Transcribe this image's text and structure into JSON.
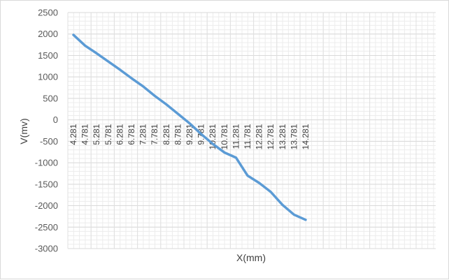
{
  "chart_data": {
    "type": "line",
    "title": "",
    "xlabel": "X(mm)",
    "ylabel": "V(mv)",
    "ylim": [
      -3000,
      2500
    ],
    "y_ticks": [
      2500,
      2000,
      1500,
      1000,
      500,
      0,
      -500,
      -1000,
      -1500,
      -2000,
      -2500,
      -3000
    ],
    "categories": [
      "4.281",
      "4.781",
      "5.281",
      "5.781",
      "6.281",
      "6.781",
      "7.281",
      "7.781",
      "8.281",
      "8.781",
      "9.281",
      "9.781",
      "10.281",
      "10.781",
      "11.281",
      "11.781",
      "12.281",
      "12.781",
      "13.281",
      "13.781",
      "14.281"
    ],
    "series": [
      {
        "color": "#5b9bd5",
        "values": [
          1980,
          1730,
          1550,
          1360,
          1170,
          970,
          780,
          560,
          360,
          140,
          -80,
          -330,
          -560,
          -760,
          -880,
          -1300,
          -1470,
          -1680,
          -1980,
          -2210,
          -2330
        ]
      }
    ],
    "grid": true,
    "legend": "none"
  }
}
